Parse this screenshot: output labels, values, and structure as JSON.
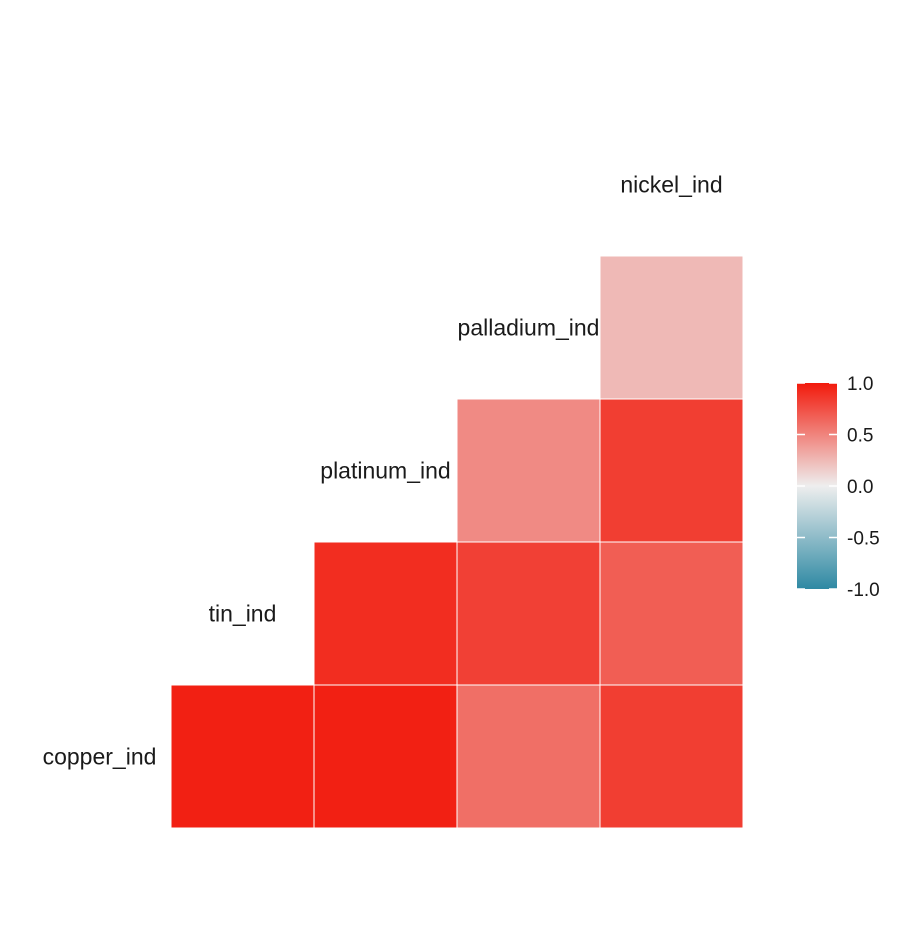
{
  "chart_data": {
    "type": "heatmap",
    "title": "",
    "variables": [
      "copper_ind",
      "tin_ind",
      "platinum_ind",
      "palladium_ind",
      "nickel_ind"
    ],
    "cells": [
      {
        "row": "copper_ind",
        "col": "tin_ind",
        "value": 0.97
      },
      {
        "row": "copper_ind",
        "col": "platinum_ind",
        "value": 0.97
      },
      {
        "row": "copper_ind",
        "col": "palladium_ind",
        "value": 0.6
      },
      {
        "row": "copper_ind",
        "col": "nickel_ind",
        "value": 0.83
      },
      {
        "row": "tin_ind",
        "col": "platinum_ind",
        "value": 0.91
      },
      {
        "row": "tin_ind",
        "col": "palladium_ind",
        "value": 0.82
      },
      {
        "row": "tin_ind",
        "col": "nickel_ind",
        "value": 0.68
      },
      {
        "row": "platinum_ind",
        "col": "palladium_ind",
        "value": 0.47
      },
      {
        "row": "platinum_ind",
        "col": "nickel_ind",
        "value": 0.83
      },
      {
        "row": "palladium_ind",
        "col": "nickel_ind",
        "value": 0.25
      }
    ],
    "color_scale": {
      "limits": [
        -1,
        1
      ],
      "low": "#2e89a3",
      "mid": "#eeeeee",
      "high": "#f21a0c",
      "ticks": [
        "1.0",
        "0.5",
        "0.0",
        "-0.5",
        "-1.0"
      ]
    },
    "legend_position": "right"
  }
}
